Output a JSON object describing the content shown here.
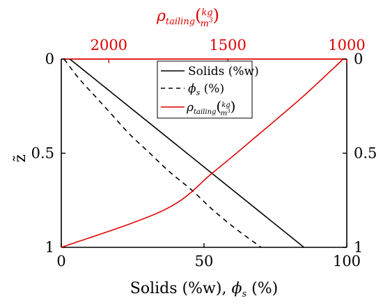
{
  "chart_data": {
    "type": "line",
    "x_axis": {
      "label_main": "Solids (%w),  ",
      "label_phi": "ϕ",
      "label_sub": "s",
      "label_unit": " (%)",
      "lim": [
        0,
        100
      ],
      "ticks": [
        0,
        50,
        100
      ],
      "tick_labels": [
        "0",
        "50",
        "100"
      ]
    },
    "top_axis": {
      "label_rho": "ρ",
      "label_sub": "tailing",
      "label_num": "kg",
      "label_den": "m",
      "label_den_exp": "3",
      "lim": [
        2200,
        1000
      ],
      "ticks": [
        2000,
        1500,
        1000
      ],
      "tick_labels": [
        "2000",
        "1500",
        "1000"
      ],
      "color": "#e00000"
    },
    "y_axis": {
      "label": "z̃",
      "lim": [
        0,
        1
      ],
      "inverted": true,
      "ticks": [
        0,
        0.5,
        1
      ],
      "tick_labels": [
        "0",
        "0.5",
        "1"
      ]
    },
    "legend": {
      "placement": "top-center",
      "entries": [
        {
          "text": "Solids (%w)",
          "style": "solid",
          "color": "#000000"
        },
        {
          "phi": "ϕ",
          "sub": "s",
          "unit": " (%)",
          "style": "dashed",
          "color": "#000000"
        },
        {
          "rho": "ρ",
          "sub": "tailing",
          "num": "kg",
          "den": "m",
          "den_exp": "3",
          "style": "solid",
          "color": "#e00000"
        }
      ]
    },
    "series": [
      {
        "name": "Solids (%w)",
        "axis": "bottom",
        "color": "#000000",
        "dash": "solid",
        "points": [
          [
            3,
            0
          ],
          [
            85,
            1
          ]
        ]
      },
      {
        "name": "ϕs (%)",
        "axis": "bottom",
        "color": "#000000",
        "dash": "dashed",
        "points": [
          [
            1,
            0
          ],
          [
            6,
            0.1
          ],
          [
            12,
            0.2
          ],
          [
            18,
            0.3
          ],
          [
            24,
            0.4
          ],
          [
            31,
            0.5
          ],
          [
            38,
            0.6
          ],
          [
            46,
            0.7
          ],
          [
            53,
            0.8
          ],
          [
            61,
            0.9
          ],
          [
            70,
            1
          ]
        ]
      },
      {
        "name": "ρtailing (kg/m³)",
        "axis": "top",
        "color": "#e00000",
        "dash": "solid",
        "points": [
          [
            1015,
            0
          ],
          [
            1185,
            0.2
          ],
          [
            1370,
            0.4
          ],
          [
            1560,
            0.6
          ],
          [
            1765,
            0.8
          ],
          [
            2200,
            1
          ]
        ]
      }
    ],
    "grid": false
  }
}
